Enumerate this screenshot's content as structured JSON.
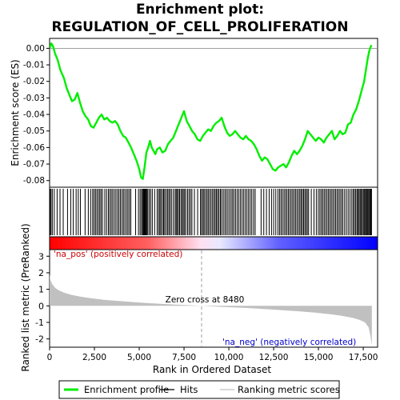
{
  "chart_data": {
    "type": "line",
    "title_line1": "Enrichment plot:",
    "title_line2": "REGULATION_OF_CELL_PROLIFERATION",
    "panels": {
      "enrichment": {
        "ylabel": "Enrichment score (ES)",
        "ylim": [
          -0.084,
          0.006
        ],
        "yticks": [
          0.0,
          -0.01,
          -0.02,
          -0.03,
          -0.04,
          -0.05,
          -0.06,
          -0.07,
          -0.08
        ],
        "ytick_labels": [
          "0.00",
          "-0.01",
          "-0.02",
          "-0.03",
          "-0.04",
          "-0.05",
          "-0.06",
          "-0.07",
          "-0.08"
        ],
        "series": [
          {
            "name": "Enrichment profile",
            "color": "#00ee00",
            "x": [
              0,
              100,
              200,
              300,
              450,
              600,
              800,
              950,
              1100,
              1250,
              1400,
              1550,
              1700,
              1850,
              2000,
              2150,
              2300,
              2450,
              2600,
              2750,
              2900,
              3050,
              3200,
              3350,
              3500,
              3650,
              3800,
              3950,
              4100,
              4250,
              4400,
              4550,
              4700,
              4850,
              5000,
              5100,
              5200,
              5300,
              5400,
              5500,
              5600,
              5700,
              5800,
              5900,
              6000,
              6150,
              6300,
              6450,
              6600,
              6750,
              6900,
              7050,
              7200,
              7350,
              7500,
              7650,
              7800,
              7950,
              8100,
              8250,
              8400,
              8550,
              8700,
              8850,
              9000,
              9150,
              9300,
              9450,
              9600,
              9750,
              9900,
              10050,
              10200,
              10350,
              10500,
              10650,
              10800,
              10950,
              11100,
              11250,
              11400,
              11550,
              11700,
              11850,
              12000,
              12150,
              12300,
              12450,
              12600,
              12750,
              12900,
              13050,
              13200,
              13350,
              13500,
              13650,
              13800,
              13950,
              14100,
              14250,
              14400,
              14550,
              14700,
              14850,
              15000,
              15150,
              15300,
              15450,
              15600,
              15750,
              15900,
              16050,
              16200,
              16350,
              16500,
              16650,
              16800,
              16950,
              17100,
              17250,
              17400,
              17550,
              17650,
              17750,
              17850,
              17950
            ],
            "y": [
              0.0,
              0.003,
              0.001,
              -0.003,
              -0.007,
              -0.013,
              -0.018,
              -0.024,
              -0.028,
              -0.032,
              -0.031,
              -0.027,
              -0.033,
              -0.038,
              -0.041,
              -0.043,
              -0.047,
              -0.048,
              -0.045,
              -0.042,
              -0.04,
              -0.043,
              -0.042,
              -0.044,
              -0.045,
              -0.044,
              -0.046,
              -0.05,
              -0.053,
              -0.054,
              -0.057,
              -0.06,
              -0.064,
              -0.068,
              -0.073,
              -0.078,
              -0.079,
              -0.072,
              -0.063,
              -0.06,
              -0.056,
              -0.06,
              -0.062,
              -0.064,
              -0.061,
              -0.06,
              -0.063,
              -0.062,
              -0.058,
              -0.056,
              -0.054,
              -0.05,
              -0.046,
              -0.042,
              -0.038,
              -0.044,
              -0.047,
              -0.05,
              -0.052,
              -0.055,
              -0.056,
              -0.053,
              -0.051,
              -0.049,
              -0.05,
              -0.047,
              -0.045,
              -0.044,
              -0.042,
              -0.047,
              -0.051,
              -0.053,
              -0.052,
              -0.05,
              -0.052,
              -0.054,
              -0.055,
              -0.053,
              -0.055,
              -0.056,
              -0.058,
              -0.061,
              -0.065,
              -0.068,
              -0.066,
              -0.067,
              -0.07,
              -0.073,
              -0.074,
              -0.072,
              -0.071,
              -0.07,
              -0.072,
              -0.069,
              -0.065,
              -0.062,
              -0.064,
              -0.062,
              -0.059,
              -0.055,
              -0.05,
              -0.052,
              -0.054,
              -0.056,
              -0.054,
              -0.055,
              -0.057,
              -0.054,
              -0.052,
              -0.05,
              -0.055,
              -0.053,
              -0.05,
              -0.052,
              -0.051,
              -0.046,
              -0.045,
              -0.04,
              -0.037,
              -0.032,
              -0.026,
              -0.02,
              -0.013,
              -0.006,
              -0.001,
              0.002
            ]
          }
        ]
      },
      "hits": {
        "color": "#000000",
        "positions": [
          30,
          80,
          150,
          260,
          420,
          580,
          760,
          1000,
          1180,
          1320,
          1480,
          1600,
          1720,
          1980,
          2160,
          2290,
          2400,
          2480,
          2560,
          2640,
          2720,
          2800,
          2870,
          2950,
          3080,
          3180,
          3280,
          3360,
          3440,
          3520,
          3610,
          3700,
          3790,
          3870,
          3950,
          4040,
          4120,
          4200,
          4290,
          4370,
          4450,
          4530,
          4800,
          4960,
          5050,
          5130,
          5190,
          5230,
          5270,
          5310,
          5350,
          5390,
          5430,
          5480,
          5560,
          5640,
          5730,
          5860,
          6000,
          6080,
          6150,
          6210,
          6290,
          6360,
          6420,
          6500,
          6580,
          6650,
          6720,
          6800,
          6900,
          7000,
          7060,
          7120,
          7190,
          7250,
          7330,
          7400,
          7460,
          7530,
          7600,
          7700,
          7780,
          7860,
          7940,
          8080,
          8260,
          8420,
          8480,
          8560,
          8620,
          8700,
          8780,
          8850,
          8930,
          9010,
          9090,
          9170,
          9240,
          9310,
          9380,
          9450,
          9530,
          9600,
          9690,
          9780,
          9860,
          9950,
          10040,
          10130,
          10210,
          10290,
          10380,
          10470,
          10560,
          10650,
          10740,
          10830,
          10920,
          11010,
          11100,
          11190,
          11280,
          11380,
          11470,
          11800,
          11950,
          12100,
          12250,
          12380,
          12500,
          12620,
          12740,
          12830,
          12910,
          12990,
          13080,
          13160,
          13240,
          13320,
          13400,
          13480,
          13560,
          13640,
          13720,
          13800,
          13880,
          13960,
          14030,
          14100,
          14170,
          14240,
          14310,
          14380,
          14450,
          14600,
          14750,
          14880,
          14990,
          15080,
          15160,
          15240,
          15320,
          15400,
          15480,
          15560,
          15640,
          15720,
          15800,
          15880,
          15960,
          16040,
          16120,
          16200,
          16280,
          16360,
          16460,
          16560,
          16660,
          16760,
          16860,
          16940,
          17010,
          17080,
          17150,
          17210,
          17270,
          17330,
          17390,
          17450,
          17510,
          17570,
          17620,
          17670,
          17720,
          17770,
          17820,
          17870,
          17920,
          17960
        ]
      },
      "ranked_metric": {
        "ylabel": "Ranked list metric (PreRanked)",
        "ylim": [
          -2.5,
          3.4
        ],
        "yticks": [
          3,
          2,
          1,
          0,
          -1,
          -2
        ],
        "ytick_labels": [
          "3",
          "2",
          "1",
          "0",
          "-1",
          "-2"
        ],
        "fill_color": "#c0c0c0",
        "x": [
          0,
          50,
          150,
          300,
          500,
          800,
          1200,
          1700,
          2300,
          3000,
          3800,
          4600,
          5400,
          6200,
          7000,
          7800,
          8480,
          9200,
          10000,
          10800,
          11600,
          12400,
          13200,
          14000,
          14800,
          15600,
          16300,
          16900,
          17300,
          17600,
          17800,
          17900,
          17980
        ],
        "values": [
          1.9,
          1.55,
          1.3,
          1.1,
          0.95,
          0.8,
          0.67,
          0.56,
          0.46,
          0.37,
          0.3,
          0.23,
          0.17,
          0.12,
          0.08,
          0.04,
          0.0,
          -0.04,
          -0.08,
          -0.12,
          -0.17,
          -0.22,
          -0.28,
          -0.34,
          -0.41,
          -0.5,
          -0.6,
          -0.72,
          -0.85,
          -1.0,
          -1.3,
          -1.8,
          -2.4
        ]
      }
    },
    "xlabel": "Rank in Ordered Dataset",
    "xlim": [
      0,
      18300
    ],
    "xticks": [
      0,
      2500,
      5000,
      7500,
      10000,
      12500,
      15000,
      17500
    ],
    "xtick_labels": [
      "0",
      "2,500",
      "5,000",
      "7,500",
      "10,000",
      "12,500",
      "15,000",
      "17,500"
    ],
    "zero_cross_rank": 8480,
    "annotations": {
      "zero_cross": "Zero cross at 8480",
      "na_pos": "'na_pos' (positively correlated)",
      "na_neg": "'na_neg' (negatively correlated)"
    },
    "colors": {
      "na_pos": "#cc0000",
      "na_neg": "#0000cc",
      "pos_strong": "#ff0000",
      "neg_strong": "#0000ff"
    },
    "legend": {
      "placement": "bottom",
      "items": [
        {
          "label": "Enrichment profile",
          "color": "#00ee00",
          "kind": "thick-line"
        },
        {
          "label": "Hits",
          "color": "#000000",
          "kind": "line"
        },
        {
          "label": "Ranking metric scores",
          "color": "#c0c0c0",
          "kind": "line"
        }
      ]
    }
  }
}
